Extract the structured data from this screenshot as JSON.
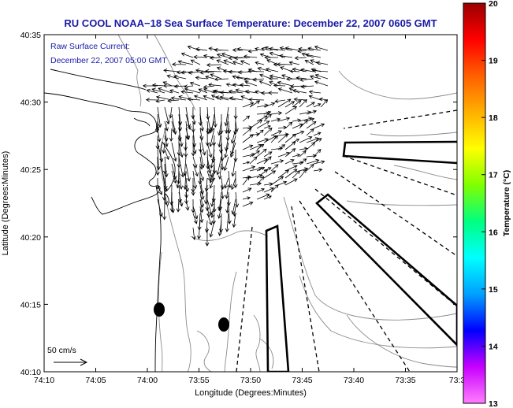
{
  "title": "RU COOL  NOAA−18  Sea Surface Temperature:  December 22, 2007 0605 GMT",
  "current_label_line1": "Raw Surface Current:",
  "current_label_line2": "December 22, 2007 05:00 GMT",
  "scale_label": "50 cm/s",
  "x_axis": {
    "label": "Longitude (Degrees:Minutes)",
    "ticks": [
      "74:10",
      "74:05",
      "74:00",
      "73:55",
      "73:50",
      "73:45",
      "73:40",
      "73:35",
      "73:3"
    ]
  },
  "y_axis": {
    "label": "Latitude (Degrees:Minutes)",
    "ticks": [
      "40:35",
      "40:30",
      "40:25",
      "40:20",
      "40:15",
      "40:10"
    ]
  },
  "colorbar": {
    "label": "Temperature (°C)",
    "ticks": [
      "20",
      "19",
      "18",
      "17",
      "16",
      "15",
      "14",
      "13"
    ],
    "min": 13,
    "max": 20,
    "colors": [
      "#ff7fff",
      "#c800ff",
      "#0000ff",
      "#00a0ff",
      "#00ffff",
      "#00ff80",
      "#80ff00",
      "#ffff00",
      "#ffb000",
      "#ff6000",
      "#ff0000",
      "#9a0000"
    ]
  },
  "colors": {
    "title_text": "#1a1aa8",
    "contour": "#8c8c8c",
    "coast": "#000000"
  }
}
